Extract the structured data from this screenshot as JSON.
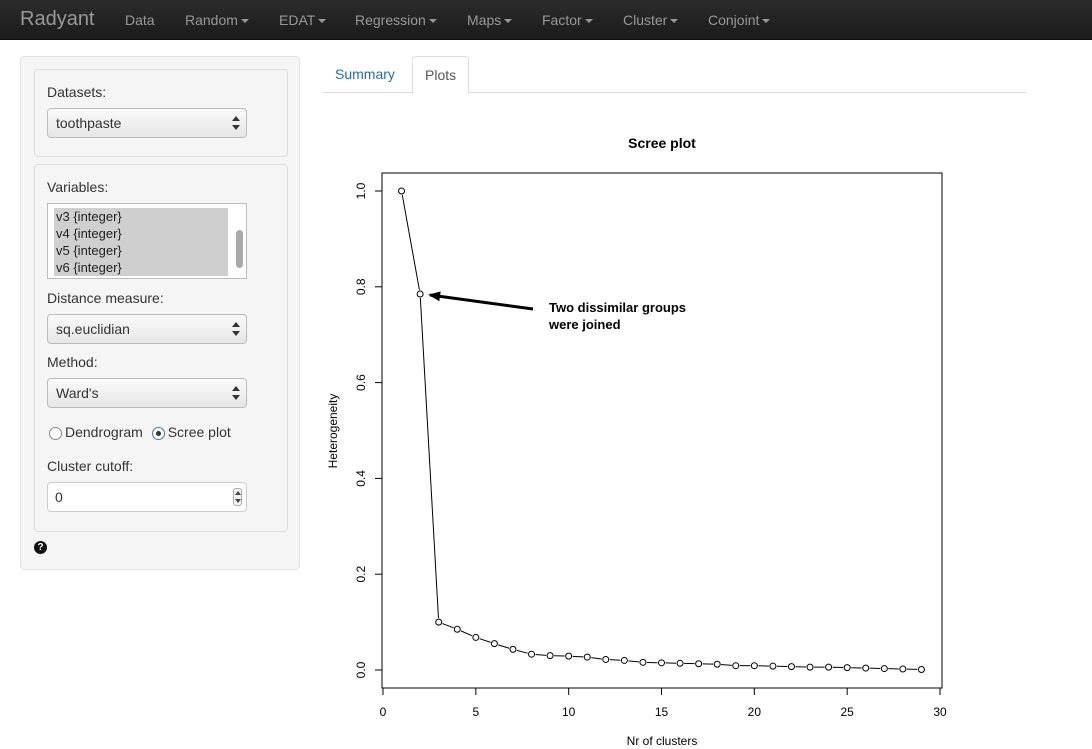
{
  "navbar": {
    "brand": "Radyant",
    "menus": [
      {
        "label": "Data",
        "dropdown": false
      },
      {
        "label": "Random",
        "dropdown": true
      },
      {
        "label": "EDAT",
        "dropdown": true
      },
      {
        "label": "Regression",
        "dropdown": true
      },
      {
        "label": "Maps",
        "dropdown": true
      },
      {
        "label": "Factor",
        "dropdown": true
      },
      {
        "label": "Cluster",
        "dropdown": true
      },
      {
        "label": "Conjoint",
        "dropdown": true
      }
    ]
  },
  "sidebar": {
    "datasets_label": "Datasets:",
    "datasets_value": "toothpaste",
    "variables_label": "Variables:",
    "variables": [
      "v3 {integer}",
      "v4 {integer}",
      "v5 {integer}",
      "v6 {integer}"
    ],
    "distance_label": "Distance measure:",
    "distance_value": "sq.euclidian",
    "method_label": "Method:",
    "method_value": "Ward's",
    "plot_options": [
      {
        "label": "Dendrogram",
        "checked": false
      },
      {
        "label": "Scree plot",
        "checked": true
      }
    ],
    "cutoff_label": "Cluster cutoff:",
    "cutoff_value": "0",
    "help_icon": "question-circle-icon",
    "help_glyph": "?"
  },
  "tabs": {
    "summary": "Summary",
    "plots": "Plots",
    "active": "plots"
  },
  "chart_data": {
    "type": "line",
    "title": "Scree plot",
    "xlabel": "Nr of clusters",
    "ylabel": "Heterogeneity",
    "xlim": [
      0,
      30
    ],
    "ylim": [
      0,
      1
    ],
    "x_ticks": [
      0,
      5,
      10,
      15,
      20,
      25,
      30
    ],
    "y_ticks": [
      0.0,
      0.2,
      0.4,
      0.6,
      0.8,
      1.0
    ],
    "y_tick_labels": [
      "0.0",
      "0.2",
      "0.4",
      "0.6",
      "0.8",
      "1.0"
    ],
    "grid": false,
    "series": [
      {
        "x": [
          1,
          2,
          3,
          4,
          5,
          6,
          7,
          8,
          9,
          10,
          11,
          12,
          13,
          14,
          15,
          16,
          17,
          18,
          19,
          20,
          21,
          22,
          23,
          24,
          25,
          26,
          27,
          28,
          29
        ],
        "y": [
          1.0,
          0.785,
          0.1,
          0.085,
          0.068,
          0.055,
          0.043,
          0.033,
          0.03,
          0.029,
          0.027,
          0.022,
          0.02,
          0.016,
          0.015,
          0.014,
          0.013,
          0.012,
          0.009,
          0.009,
          0.008,
          0.007,
          0.006,
          0.006,
          0.005,
          0.004,
          0.003,
          0.002,
          0.001
        ]
      }
    ],
    "annotation": {
      "lines": [
        "Two dissimilar groups",
        "were joined"
      ],
      "arrow_to": {
        "x": 2,
        "y": 0.785
      }
    }
  }
}
